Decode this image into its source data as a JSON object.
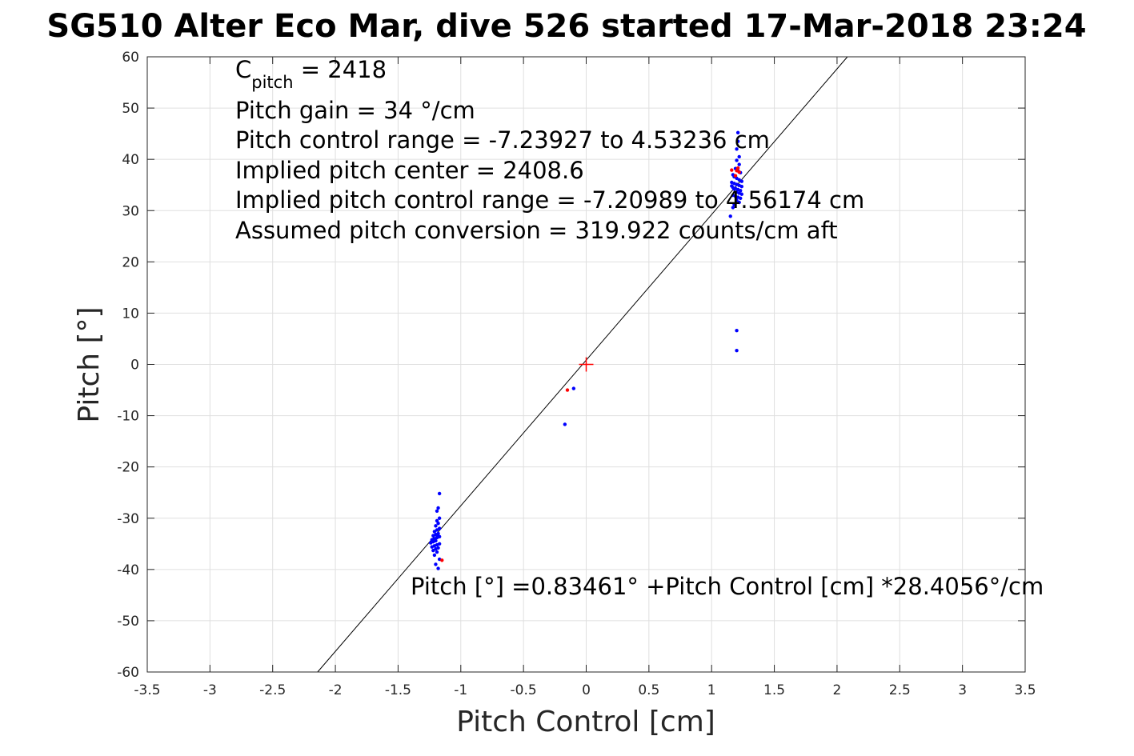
{
  "chart_data": {
    "type": "scatter",
    "title": "SG510 Alter Eco Mar, dive 526 started 17-Mar-2018 23:24",
    "xlabel": "Pitch Control [cm]",
    "ylabel": "Pitch [°]",
    "xlim": [
      -3.5,
      3.5
    ],
    "ylim": [
      -60,
      60
    ],
    "xticks": [
      -3.5,
      -3,
      -2.5,
      -2,
      -1.5,
      -1,
      -0.5,
      0,
      0.5,
      1,
      1.5,
      2,
      2.5,
      3,
      3.5
    ],
    "xtick_labels": [
      "-3.5",
      "-3",
      "-2.5",
      "-2",
      "-1.5",
      "-1",
      "-0.5",
      "0",
      "0.5",
      "1",
      "1.5",
      "2",
      "2.5",
      "3",
      "3.5"
    ],
    "yticks": [
      60,
      50,
      40,
      30,
      20,
      10,
      0,
      -10,
      -20,
      -30,
      -40,
      -50,
      -60
    ],
    "ytick_labels": [
      "60",
      "50",
      "40",
      "30",
      "20",
      "10",
      "0",
      "-10",
      "-20",
      "-30",
      "-40",
      "-50",
      "-60"
    ],
    "grid": true,
    "annotations": {
      "cpitch_base": "C",
      "cpitch_sub": "pitch",
      "cpitch_value": " = 2418",
      "lines": [
        "Pitch gain = 34 °/cm",
        "Pitch control range = -7.23927 to 4.53236 cm",
        "Implied pitch center = 2408.6",
        "Implied pitch control range = -7.20989 to 4.56174 cm",
        "Assumed pitch conversion = 319.922 counts/cm aft"
      ],
      "fit_equation": "Pitch [°] =0.83461° +Pitch Control [cm] *28.4056°/cm"
    },
    "fit_line": {
      "intercept": 0.83461,
      "slope": 28.4056,
      "color": "#000000"
    },
    "center_marker": {
      "x": 0,
      "y": 0,
      "color": "#ff0000",
      "shape": "plus"
    },
    "series": [
      {
        "color": "#0000ff",
        "x": [
          1.21,
          1.21,
          1.2,
          1.22,
          1.2,
          1.22,
          1.19,
          1.21,
          1.23,
          1.17,
          1.18,
          1.2,
          1.22,
          1.24,
          1.16,
          1.18,
          1.2,
          1.22,
          1.24,
          1.17,
          1.19,
          1.21,
          1.23,
          1.16,
          1.18,
          1.2,
          1.22,
          1.24,
          1.17,
          1.19,
          1.21,
          1.23,
          1.2,
          1.22,
          1.18,
          1.17,
          1.15,
          1.2,
          1.2,
          -1.17,
          -1.18,
          -1.19,
          -1.17,
          -1.19,
          -1.18,
          -1.2,
          -1.17,
          -1.19,
          -1.21,
          -1.18,
          -1.2,
          -1.22,
          -1.17,
          -1.19,
          -1.21,
          -1.23,
          -1.18,
          -1.2,
          -1.22,
          -1.24,
          -1.17,
          -1.19,
          -1.21,
          -1.23,
          -1.18,
          -1.2,
          -1.22,
          -1.19,
          -1.21,
          -1.17,
          -1.2,
          -1.18,
          -0.1,
          -0.17
        ],
        "y": [
          45.2,
          43.5,
          42.0,
          40.5,
          39.8,
          39.0,
          38.2,
          37.8,
          37.4,
          37.0,
          36.6,
          36.3,
          36.0,
          35.7,
          35.5,
          35.3,
          35.1,
          34.9,
          34.7,
          34.5,
          34.3,
          34.1,
          33.9,
          34.8,
          34.2,
          33.6,
          33.4,
          33.2,
          33.0,
          32.8,
          32.6,
          32.4,
          32.0,
          31.6,
          31.2,
          30.6,
          28.9,
          6.6,
          2.7,
          -25.2,
          -28.0,
          -28.6,
          -30.0,
          -30.5,
          -31.0,
          -31.5,
          -32.0,
          -32.3,
          -32.6,
          -33.0,
          -33.2,
          -33.4,
          -33.6,
          -33.8,
          -34.0,
          -34.2,
          -33.5,
          -34.4,
          -34.6,
          -34.8,
          -35.0,
          -35.2,
          -35.4,
          -35.6,
          -35.8,
          -36.0,
          -36.3,
          -36.6,
          -37.2,
          -38.0,
          -39.0,
          -39.8,
          -4.7,
          -11.7
        ]
      },
      {
        "color": "#ff0000",
        "x": [
          1.21,
          1.2,
          1.22,
          1.16,
          1.19,
          -1.15,
          -0.15
        ],
        "y": [
          38.3,
          37.8,
          37.5,
          37.9,
          36.8,
          -38.2,
          -5.0
        ]
      }
    ]
  }
}
